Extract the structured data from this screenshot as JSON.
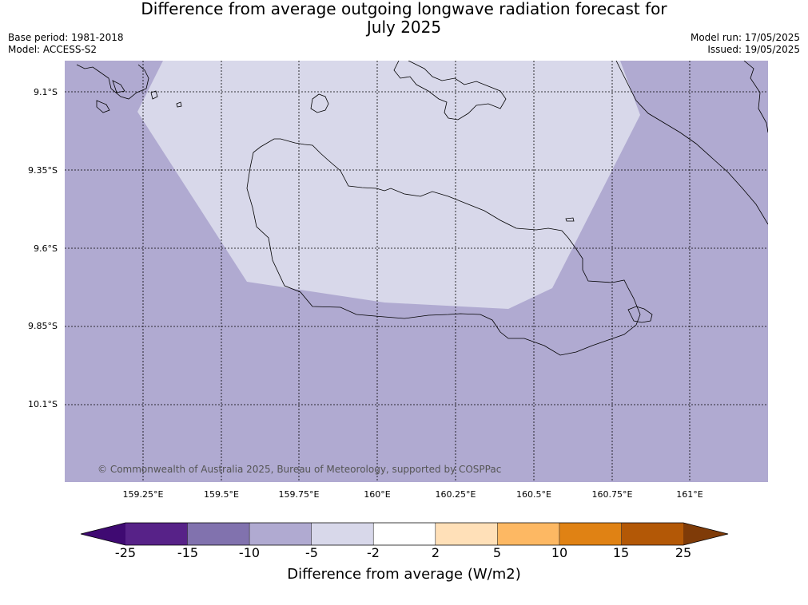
{
  "header": {
    "title_line1": "Difference from average outgoing longwave radiation forecast for",
    "title_line2": "July 2025",
    "base_period": "Base period: 1981-2018",
    "model": "Model: ACCESS-S2",
    "model_run": "Model run: 17/05/2025",
    "issued": "Issued: 19/05/2025"
  },
  "map": {
    "y_labels": [
      "9.1°S",
      "9.35°S",
      "9.6°S",
      "9.85°S",
      "10.1°S"
    ],
    "x_labels": [
      "159.25°E",
      "159.5°E",
      "159.75°E",
      "160°E",
      "160.25°E",
      "160.5°E",
      "160.75°E",
      "161°E"
    ],
    "copyright": "© Commonwealth of Australia 2025, Bureau of Meteorology, supported by COSPPac",
    "background_color": "#b0aad1",
    "anomaly_region_color": "#d8d8ea",
    "background_category": "-10 to -5",
    "region_category": "-5 to -2"
  },
  "colorbar": {
    "ticks": [
      "-25",
      "-15",
      "-10",
      "-5",
      "-2",
      "2",
      "5",
      "10",
      "15",
      "25"
    ],
    "colors": [
      "#3f0a72",
      "#572288",
      "#8172ae",
      "#b0aad1",
      "#d8d8ea",
      "#ffffff",
      "#ffe0b8",
      "#fdb863",
      "#e08214",
      "#b35806",
      "#7f3b08"
    ],
    "label": "Difference from average (W/m2)"
  }
}
